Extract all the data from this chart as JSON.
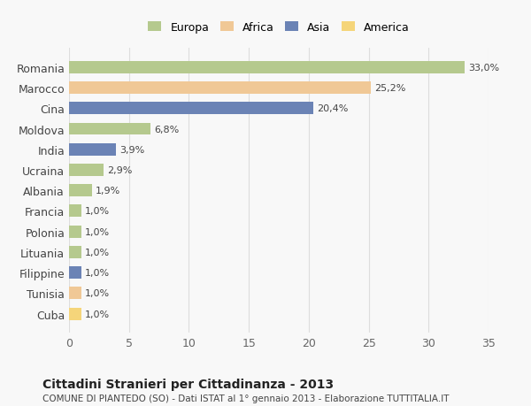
{
  "countries": [
    "Romania",
    "Marocco",
    "Cina",
    "Moldova",
    "India",
    "Ucraina",
    "Albania",
    "Francia",
    "Polonia",
    "Lituania",
    "Filippine",
    "Tunisia",
    "Cuba"
  ],
  "values": [
    33.0,
    25.2,
    20.4,
    6.8,
    3.9,
    2.9,
    1.9,
    1.0,
    1.0,
    1.0,
    1.0,
    1.0,
    1.0
  ],
  "labels": [
    "33,0%",
    "25,2%",
    "20,4%",
    "6,8%",
    "3,9%",
    "2,9%",
    "1,9%",
    "1,0%",
    "1,0%",
    "1,0%",
    "1,0%",
    "1,0%",
    "1,0%"
  ],
  "colors": [
    "#b5c98e",
    "#f0c896",
    "#6b83b5",
    "#b5c98e",
    "#6b83b5",
    "#b5c98e",
    "#b5c98e",
    "#b5c98e",
    "#b5c98e",
    "#b5c98e",
    "#6b83b5",
    "#f0c896",
    "#f5d57a"
  ],
  "continent": [
    "Europa",
    "Africa",
    "Asia",
    "Europa",
    "Asia",
    "Europa",
    "Europa",
    "Europa",
    "Europa",
    "Europa",
    "Asia",
    "Africa",
    "America"
  ],
  "legend_labels": [
    "Europa",
    "Africa",
    "Asia",
    "America"
  ],
  "legend_colors": [
    "#b5c98e",
    "#f0c896",
    "#6b83b5",
    "#f5d57a"
  ],
  "title": "Cittadini Stranieri per Cittadinanza - 2013",
  "subtitle": "COMUNE DI PIANTEDO (SO) - Dati ISTAT al 1° gennaio 2013 - Elaborazione TUTTITALIA.IT",
  "xlim": [
    0,
    35
  ],
  "xticks": [
    0,
    5,
    10,
    15,
    20,
    25,
    30,
    35
  ],
  "bg_color": "#f8f8f8",
  "grid_color": "#dddddd",
  "bar_height": 0.6
}
